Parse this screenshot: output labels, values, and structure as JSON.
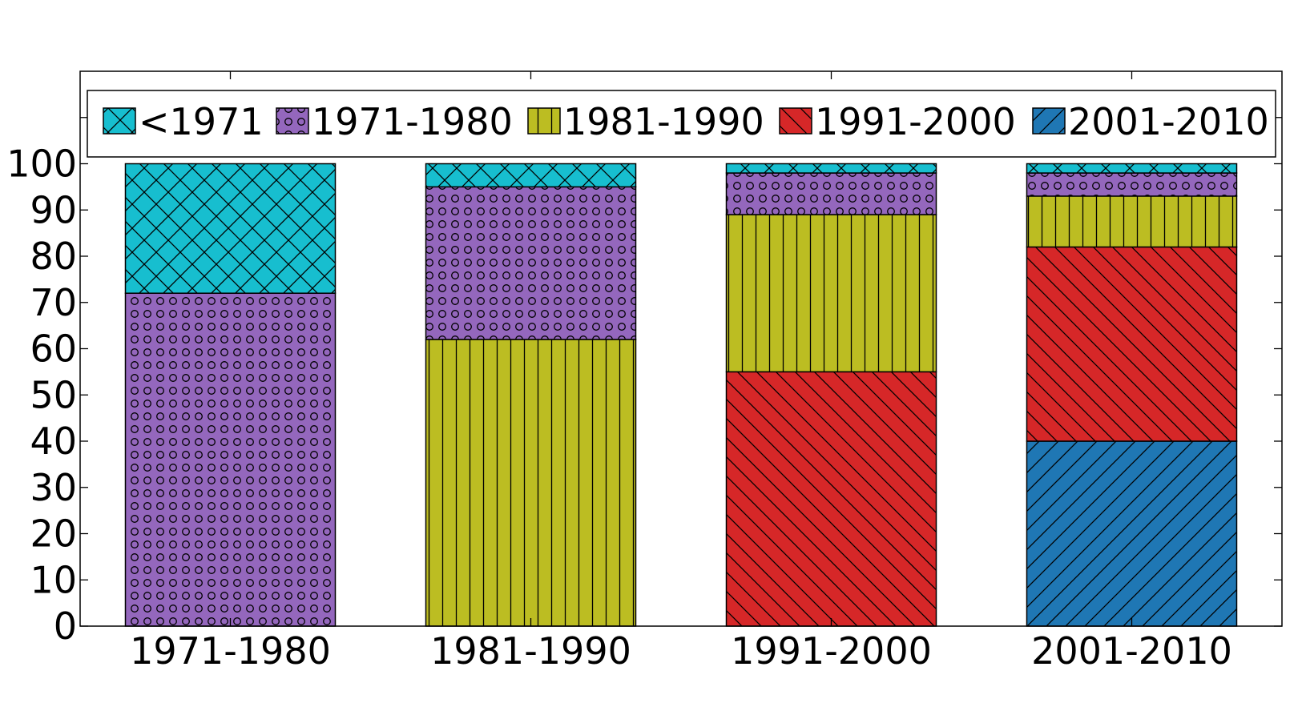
{
  "chart_data": {
    "type": "bar",
    "stacked": true,
    "categories": [
      "1971-1980",
      "1981-1990",
      "1991-2000",
      "2001-2010"
    ],
    "series": [
      {
        "name": "2001-2010",
        "color": "#1f77b4",
        "hatch": "diag-up",
        "values": [
          0,
          0,
          0,
          40
        ]
      },
      {
        "name": "1991-2000",
        "color": "#d62728",
        "hatch": "diag-down",
        "values": [
          0,
          0,
          55,
          42
        ]
      },
      {
        "name": "1981-1990",
        "color": "#bcbd22",
        "hatch": "vertical",
        "values": [
          0,
          62,
          34,
          11
        ]
      },
      {
        "name": "1971-1980",
        "color": "#9467bd",
        "hatch": "circles",
        "values": [
          72,
          33,
          9,
          5
        ]
      },
      {
        "name": "<1971",
        "color": "#17becf",
        "hatch": "crosshatch",
        "values": [
          28,
          5,
          2,
          2
        ]
      }
    ],
    "legend_order": [
      "<1971",
      "1971-1980",
      "1981-1990",
      "1991-2000",
      "2001-2010"
    ],
    "y_ticks": [
      0,
      10,
      20,
      30,
      40,
      50,
      60,
      70,
      80,
      90,
      100
    ],
    "ylim": [
      0,
      120
    ],
    "title": "",
    "xlabel": "",
    "ylabel": "",
    "legend_position": "top",
    "grid": false
  }
}
